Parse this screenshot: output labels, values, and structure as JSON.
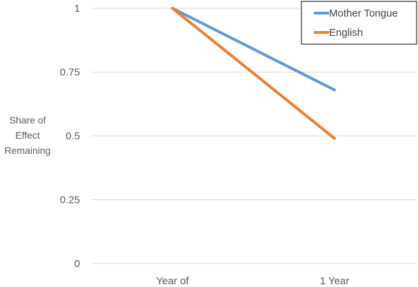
{
  "chart_data": {
    "type": "line",
    "categories": [
      "Year of",
      "1 Year"
    ],
    "series": [
      {
        "name": "Mother Tongue",
        "values": [
          1,
          0.68
        ],
        "color": "#5B9BD5"
      },
      {
        "name": "English",
        "values": [
          1,
          0.49
        ],
        "color": "#ED7D31"
      }
    ],
    "ylabel": [
      "Share of",
      "Effect",
      "Remaining"
    ],
    "ylim": [
      0,
      1
    ],
    "yticks": [
      0,
      0.25,
      0.5,
      0.75,
      1
    ],
    "ytick_labels": [
      "0",
      "0.25",
      "0.5",
      "0.75",
      "1"
    ],
    "grid": true,
    "legend_position": "top-right"
  }
}
